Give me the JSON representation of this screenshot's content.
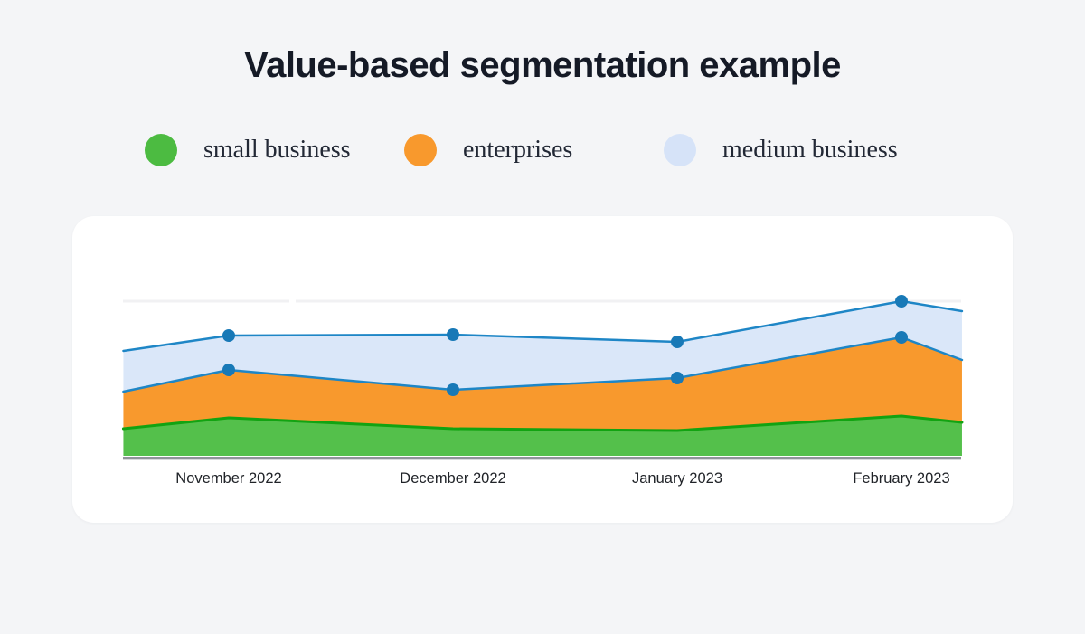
{
  "page": {
    "background": "#F4F5F7",
    "card_background": "#FFFFFF"
  },
  "title": "Value-based segmentation example",
  "legend": [
    {
      "label": "small business",
      "color": "#4CBB41"
    },
    {
      "label": "enterprises",
      "color": "#F8992D"
    },
    {
      "label": "medium business",
      "color": "#D6E3F8"
    }
  ],
  "chart_data": {
    "type": "area",
    "stacked": true,
    "title": "Value-based segmentation example",
    "categories": [
      "November 2022",
      "December 2022",
      "January 2023",
      "February 2023"
    ],
    "x": [
      -0.47,
      0,
      1,
      2,
      3,
      3.27
    ],
    "x_note": "first and last points are unlabeled edge points where the chart is clipped",
    "series": [
      {
        "name": "small business",
        "fill": "#54C04B",
        "stroke": "#12A312",
        "stroke_width": 3,
        "markers": false,
        "values": [
          30,
          42,
          30,
          28,
          44,
          37
        ]
      },
      {
        "name": "enterprises",
        "fill": "#F8992D",
        "stroke": "#1E86C6",
        "stroke_width": 2.5,
        "markers": true,
        "values": [
          41,
          53,
          43,
          58,
          87,
          69
        ]
      },
      {
        "name": "medium business",
        "fill": "#DAE7F9",
        "stroke": "#1E86C6",
        "stroke_width": 2.5,
        "markers": true,
        "values": [
          45,
          38,
          61,
          40,
          40,
          54
        ]
      }
    ],
    "stacked_totals": [
      116,
      133,
      134,
      126,
      171,
      160
    ],
    "ylim": [
      0,
      190
    ],
    "y_axis_labels": "none shown",
    "grid": "single light horizontal gridline near top of plot",
    "marker_color": "#1879B7",
    "axis_line_color": "#8F9499",
    "gridline_color": "#F1F1F3",
    "legend_position": "top"
  }
}
